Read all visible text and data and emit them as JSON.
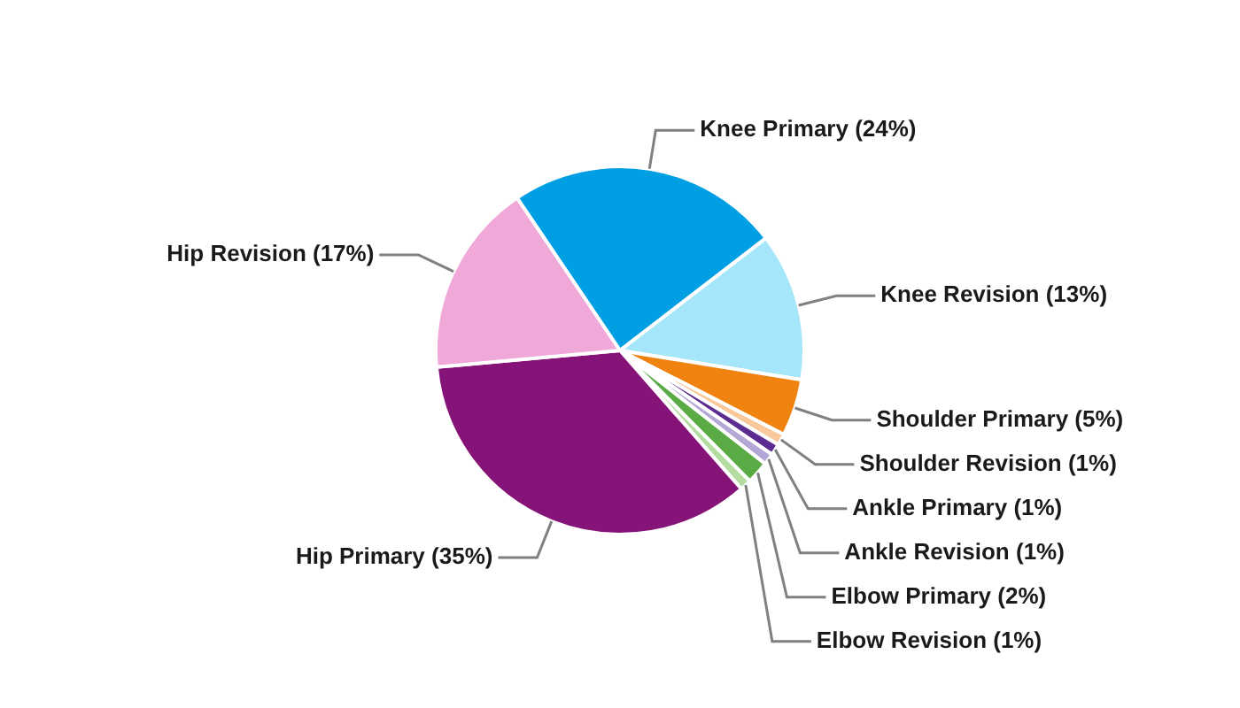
{
  "chart_data": {
    "type": "pie",
    "categories": [
      "Knee Primary",
      "Knee Revision",
      "Shoulder Primary",
      "Shoulder Revision",
      "Ankle Primary",
      "Ankle Revision",
      "Elbow Primary",
      "Elbow Revision",
      "Hip Primary",
      "Hip Revision"
    ],
    "values": [
      24,
      13,
      5,
      1,
      1,
      1,
      2,
      1,
      35,
      17
    ],
    "value_labels": [
      "(24%)",
      "(13%)",
      "(5%)",
      "(1%)",
      "(1%)",
      "(1%)",
      "(2%)",
      "(1%)",
      "(35%)",
      "(17%)"
    ],
    "colors": [
      "#009fe3",
      "#a6e6fb",
      "#f0820f",
      "#f9c89b",
      "#5c2d91",
      "#b4a7d6",
      "#5aaa46",
      "#b5dca0",
      "#861478",
      "#f0a8d8"
    ]
  }
}
